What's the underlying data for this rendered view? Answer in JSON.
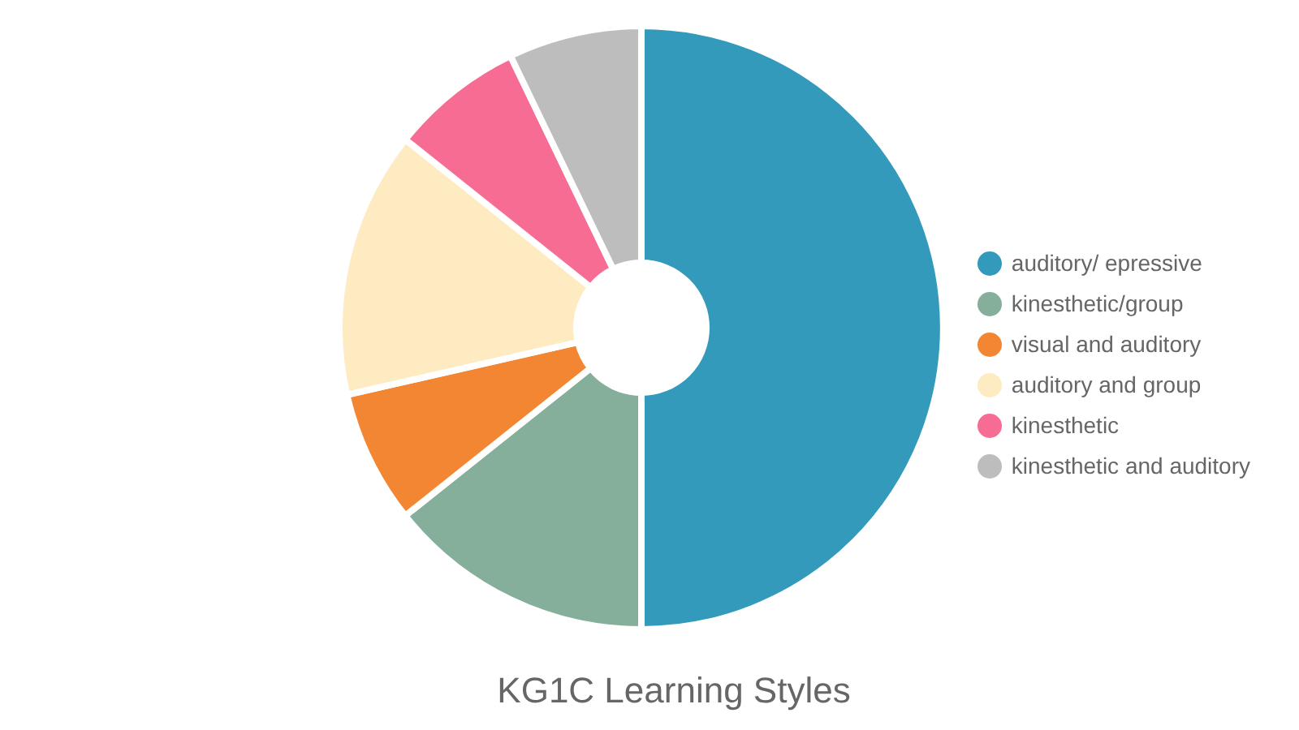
{
  "chart_data": {
    "type": "donut",
    "title": "KG1C Learning Styles",
    "categories": [
      "auditory/ epressive",
      "kinesthetic/group",
      "visual and auditory",
      "auditory and group",
      "kinesthetic",
      "kinesthetic and auditory"
    ],
    "values": [
      50,
      14.29,
      7.14,
      14.29,
      7.14,
      7.14
    ],
    "colors": [
      "#339abb",
      "#85af9b",
      "#f38632",
      "#feebc1",
      "#f76c92",
      "#bdbdbd"
    ],
    "legend": "right"
  }
}
